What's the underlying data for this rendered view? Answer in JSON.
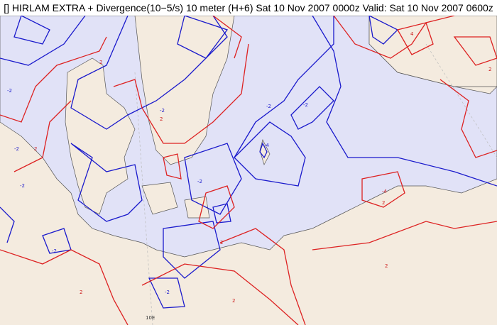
{
  "title": "[] HIRLAM EXTRA + Divergence(10−5/s) 10 meter (H+6) Sat 10 Nov 2007 0000z Valid: Sat 10 Nov 2007 0600z",
  "colors": {
    "land": "#f4ebdf",
    "sea": "#e1e2f7",
    "coast": "#555555",
    "negative_contour": "#1a1acc",
    "positive_contour": "#dd2222"
  },
  "contour_labels": {
    "negative": [
      "-2",
      "-2",
      "-2",
      "-2",
      "-2",
      "-4",
      "-2",
      "-2",
      "-2",
      "-2"
    ],
    "positive": [
      "2",
      "2",
      "2",
      "4",
      "2",
      "2",
      "2",
      "-4",
      "2",
      "2",
      "2"
    ]
  },
  "longitude_label": "10E"
}
